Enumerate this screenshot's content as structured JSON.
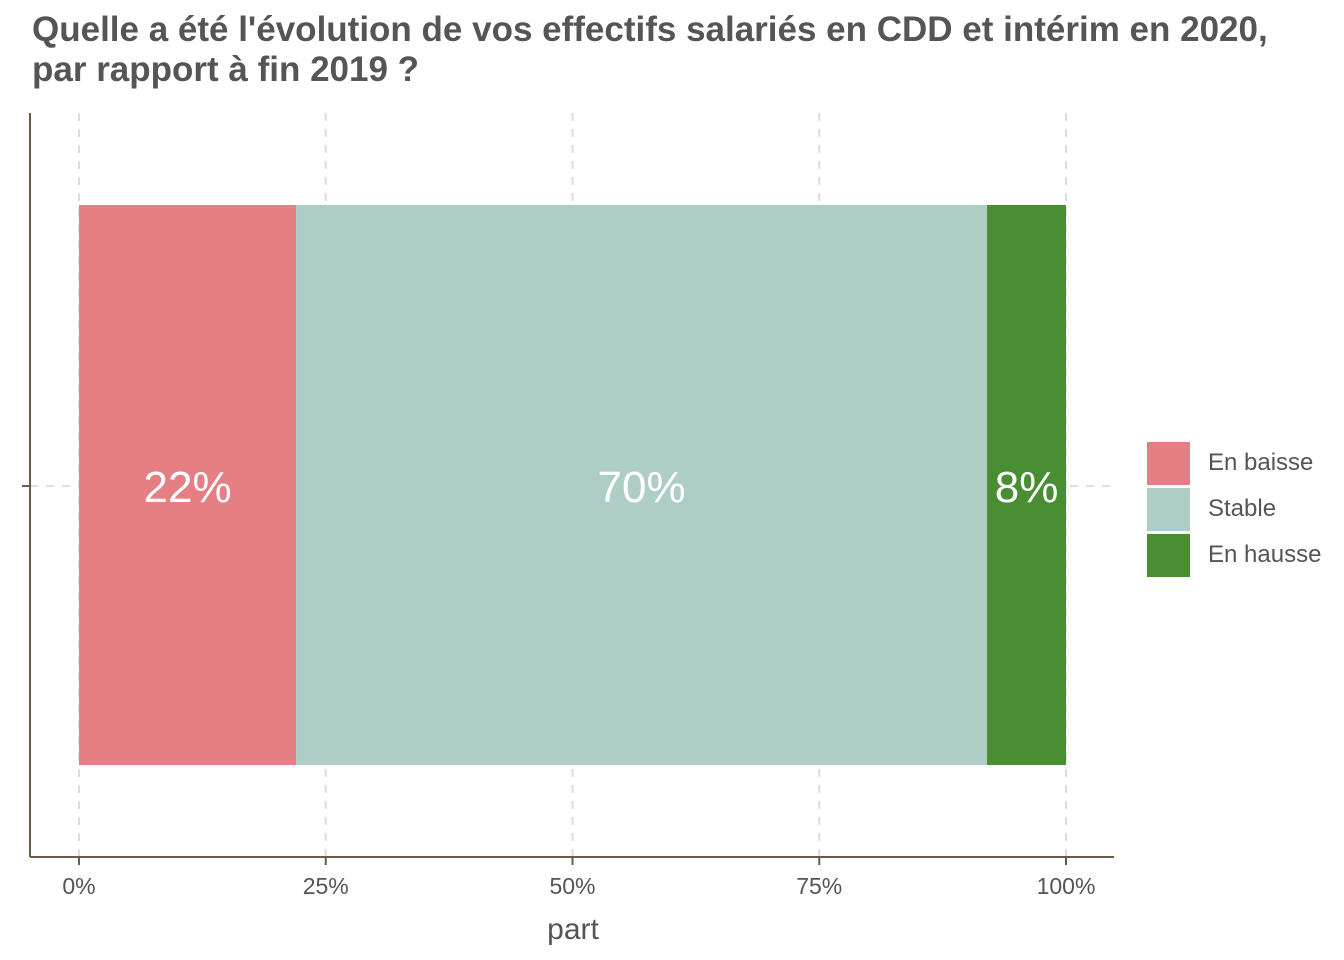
{
  "chart_data": {
    "type": "bar",
    "orientation": "horizontal",
    "stacked": true,
    "title": "Quelle a été l'évolution de vos effectifs salariés en CDD et intérim en 2020, par rapport à fin 2019 ?",
    "xlabel": "part",
    "ylabel": "",
    "xlim": [
      0,
      100
    ],
    "x_ticks": [
      "0%",
      "25%",
      "50%",
      "75%",
      "100%"
    ],
    "grid": true,
    "legend_position": "right",
    "series": [
      {
        "name": "En baisse",
        "value": 22,
        "label": "22%",
        "color": "#E57F84"
      },
      {
        "name": "Stable",
        "value": 70,
        "label": "70%",
        "color": "#AECEC5"
      },
      {
        "name": "En hausse",
        "value": 8,
        "label": "8%",
        "color": "#4A8E33"
      }
    ]
  }
}
